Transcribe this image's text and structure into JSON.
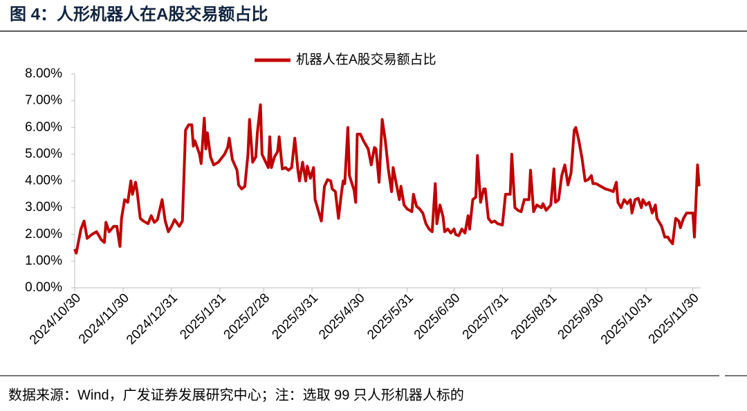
{
  "chart_data": {
    "type": "line",
    "title": "图 4：人形机器人在A股交易额占比",
    "note": "数据来源：Wind，广发证券发展研究中心；注：选取 99 只人形机器人标的",
    "x": [
      "2024/10/30",
      "2024/10/31",
      "2024/11/03",
      "2024/11/05",
      "2024/11/07",
      "2024/11/10",
      "2024/11/13",
      "2024/11/16",
      "2024/11/18",
      "2024/11/19",
      "2024/11/21",
      "2024/11/24",
      "2024/11/26",
      "2024/11/28",
      "2024/11/29",
      "2024/12/01",
      "2024/12/03",
      "2024/12/05",
      "2024/12/06",
      "2024/12/08",
      "2024/12/09",
      "2024/12/11",
      "2024/12/13",
      "2024/12/16",
      "2024/12/18",
      "2024/12/20",
      "2024/12/22",
      "2024/12/25",
      "2024/12/27",
      "2024/12/29",
      "2024/12/31",
      "2025/01/02",
      "2025/01/05",
      "2025/01/07",
      "2025/01/09",
      "2025/01/11",
      "2025/01/13",
      "2025/01/14",
      "2025/01/15",
      "2025/01/18",
      "2025/01/19",
      "2025/01/21",
      "2025/01/22",
      "2025/01/23",
      "2025/01/25",
      "2025/01/27",
      "2025/01/30",
      "2025/02/03",
      "2025/02/05",
      "2025/02/06",
      "2025/02/08",
      "2025/02/11",
      "2025/02/12",
      "2025/02/14",
      "2025/02/16",
      "2025/02/18",
      "2025/02/19",
      "2025/02/21",
      "2025/02/23",
      "2025/02/24",
      "2025/02/26",
      "2025/02/27",
      "2025/03/01",
      "2025/03/03",
      "2025/03/04",
      "2025/03/05",
      "2025/03/07",
      "2025/03/09",
      "2025/03/10",
      "2025/03/12",
      "2025/03/14",
      "2025/03/16",
      "2025/03/18",
      "2025/03/20",
      "2025/03/22",
      "2025/03/23",
      "2025/03/25",
      "2025/03/27",
      "2025/03/28",
      "2025/03/30",
      "2025/04/01",
      "2025/04/02",
      "2025/04/04",
      "2025/04/06",
      "2025/04/08",
      "2025/04/10",
      "2025/04/12",
      "2025/04/13",
      "2025/04/15",
      "2025/04/17",
      "2025/04/19",
      "2025/04/20",
      "2025/04/21",
      "2025/04/23",
      "2025/04/24",
      "2025/04/27",
      "2025/04/28",
      "2025/04/29",
      "2025/05/01",
      "2025/05/03",
      "2025/05/06",
      "2025/05/08",
      "2025/05/10",
      "2025/05/11",
      "2025/05/13",
      "2025/05/15",
      "2025/05/17",
      "2025/05/19",
      "2025/05/21",
      "2025/05/22",
      "2025/05/24",
      "2025/05/26",
      "2025/05/27",
      "2025/05/29",
      "2025/05/31",
      "2025/06/03",
      "2025/06/04",
      "2025/06/06",
      "2025/06/08",
      "2025/06/10",
      "2025/06/12",
      "2025/06/14",
      "2025/06/16",
      "2025/06/18",
      "2025/06/19",
      "2025/06/21",
      "2025/06/23",
      "2025/06/24",
      "2025/06/26",
      "2025/06/28",
      "2025/06/30",
      "2025/07/01",
      "2025/07/03",
      "2025/07/05",
      "2025/07/07",
      "2025/07/09",
      "2025/07/10",
      "2025/07/12",
      "2025/07/14",
      "2025/07/15",
      "2025/07/17",
      "2025/07/19",
      "2025/07/20",
      "2025/07/22",
      "2025/07/24",
      "2025/07/26",
      "2025/07/28",
      "2025/07/31",
      "2025/08/02",
      "2025/08/05",
      "2025/08/06",
      "2025/08/08",
      "2025/08/10",
      "2025/08/12",
      "2025/08/14",
      "2025/08/17",
      "2025/08/18",
      "2025/08/20",
      "2025/08/22",
      "2025/08/25",
      "2025/08/26",
      "2025/08/28",
      "2025/08/31",
      "2025/09/02",
      "2025/09/03",
      "2025/09/05",
      "2025/09/07",
      "2025/09/09",
      "2025/09/11",
      "2025/09/13",
      "2025/09/15",
      "2025/09/16",
      "2025/09/18",
      "2025/09/20",
      "2025/09/22",
      "2025/09/24",
      "2025/09/26",
      "2025/09/27",
      "2025/09/29",
      "2025/10/02",
      "2025/10/05",
      "2025/10/08",
      "2025/10/10",
      "2025/10/12",
      "2025/10/13",
      "2025/10/15",
      "2025/10/17",
      "2025/10/19",
      "2025/10/21",
      "2025/10/22",
      "2025/10/24",
      "2025/10/26",
      "2025/10/28",
      "2025/10/29",
      "2025/10/31",
      "2025/11/02",
      "2025/11/04",
      "2025/11/06",
      "2025/11/07",
      "2025/11/10",
      "2025/11/12",
      "2025/11/14",
      "2025/11/15",
      "2025/11/17",
      "2025/11/19",
      "2025/11/21",
      "2025/11/22",
      "2025/11/24",
      "2025/11/26",
      "2025/11/29",
      "2025/11/30",
      "2025/12/01",
      "2025/12/03",
      "2025/12/04"
    ],
    "series": [
      {
        "name": "机器人在A股交易额占比",
        "color": "#c00000",
        "values": [
          1.45,
          1.3,
          2.2,
          2.5,
          1.85,
          2.0,
          2.1,
          1.8,
          1.7,
          2.45,
          2.1,
          2.3,
          2.3,
          1.55,
          2.6,
          3.3,
          3.2,
          4.0,
          3.5,
          3.95,
          3.6,
          2.6,
          2.5,
          2.4,
          2.7,
          2.45,
          2.55,
          3.3,
          2.5,
          2.1,
          2.3,
          2.55,
          2.3,
          2.5,
          5.9,
          6.1,
          6.1,
          5.3,
          5.5,
          5.0,
          4.65,
          6.35,
          5.2,
          5.8,
          4.9,
          4.6,
          4.7,
          5.0,
          5.25,
          5.6,
          4.8,
          4.4,
          3.85,
          3.7,
          3.8,
          5.0,
          6.3,
          4.7,
          4.9,
          5.8,
          6.85,
          5.0,
          4.75,
          4.5,
          5.65,
          4.5,
          4.9,
          5.1,
          5.65,
          4.45,
          4.5,
          4.4,
          4.5,
          5.6,
          4.4,
          4.0,
          4.7,
          4.0,
          4.55,
          4.1,
          4.5,
          3.3,
          2.9,
          2.5,
          3.8,
          4.05,
          4.0,
          3.7,
          3.6,
          2.6,
          3.6,
          4.0,
          3.9,
          6.0,
          4.2,
          3.65,
          3.2,
          5.75,
          5.75,
          5.5,
          5.2,
          4.6,
          5.25,
          5.2,
          3.95,
          6.3,
          5.5,
          4.4,
          3.6,
          4.5,
          3.9,
          3.3,
          3.8,
          3.1,
          2.95,
          2.85,
          3.5,
          3.05,
          2.95,
          2.8,
          2.4,
          2.2,
          2.1,
          3.9,
          2.4,
          3.1,
          2.65,
          2.1,
          2.2,
          2.05,
          2.2,
          2.0,
          1.95,
          2.2,
          2.05,
          2.7,
          2.2,
          3.3,
          3.4,
          4.95,
          3.2,
          3.7,
          3.7,
          2.6,
          2.45,
          2.5,
          2.4,
          2.35,
          3.5,
          3.5,
          5.0,
          3.0,
          2.9,
          2.85,
          3.3,
          3.3,
          4.4,
          2.85,
          3.1,
          3.0,
          3.15,
          2.9,
          3.1,
          4.45,
          3.2,
          3.3,
          4.2,
          4.6,
          3.85,
          4.3,
          5.9,
          6.0,
          5.5,
          4.85,
          4.0,
          4.05,
          4.2,
          3.9,
          3.9,
          3.8,
          3.7,
          3.65,
          3.6,
          3.95,
          3.2,
          3.0,
          3.3,
          3.15,
          3.3,
          2.8,
          3.3,
          3.35,
          3.0,
          3.3,
          3.1,
          3.2,
          2.8,
          3.1,
          2.6,
          2.3,
          1.9,
          1.9,
          1.8,
          1.65,
          2.6,
          2.5,
          2.25,
          2.6,
          2.8,
          2.8,
          2.8,
          1.9,
          4.6,
          3.8
        ]
      }
    ],
    "xlim": [
      "2024/10/30",
      "2025/12/05"
    ],
    "xticks": [
      "2024/10/30",
      "2024/11/30",
      "2024/12/31",
      "2025/1/31",
      "2025/2/28",
      "2025/3/31",
      "2025/4/30",
      "2025/5/31",
      "2025/6/30",
      "2025/7/31",
      "2025/8/31",
      "2025/9/30",
      "2025/10/31",
      "2025/11/30"
    ],
    "ylim": [
      0,
      8
    ],
    "yticks": [
      {
        "value": 0,
        "label": "0.00%"
      },
      {
        "value": 1,
        "label": "1.00%"
      },
      {
        "value": 2,
        "label": "2.00%"
      },
      {
        "value": 3,
        "label": "3.00%"
      },
      {
        "value": 4,
        "label": "4.00%"
      },
      {
        "value": 5,
        "label": "5.00%"
      },
      {
        "value": 6,
        "label": "6.00%"
      },
      {
        "value": 7,
        "label": "7.00%"
      },
      {
        "value": 8,
        "label": "8.00%"
      }
    ],
    "legend": "top"
  }
}
